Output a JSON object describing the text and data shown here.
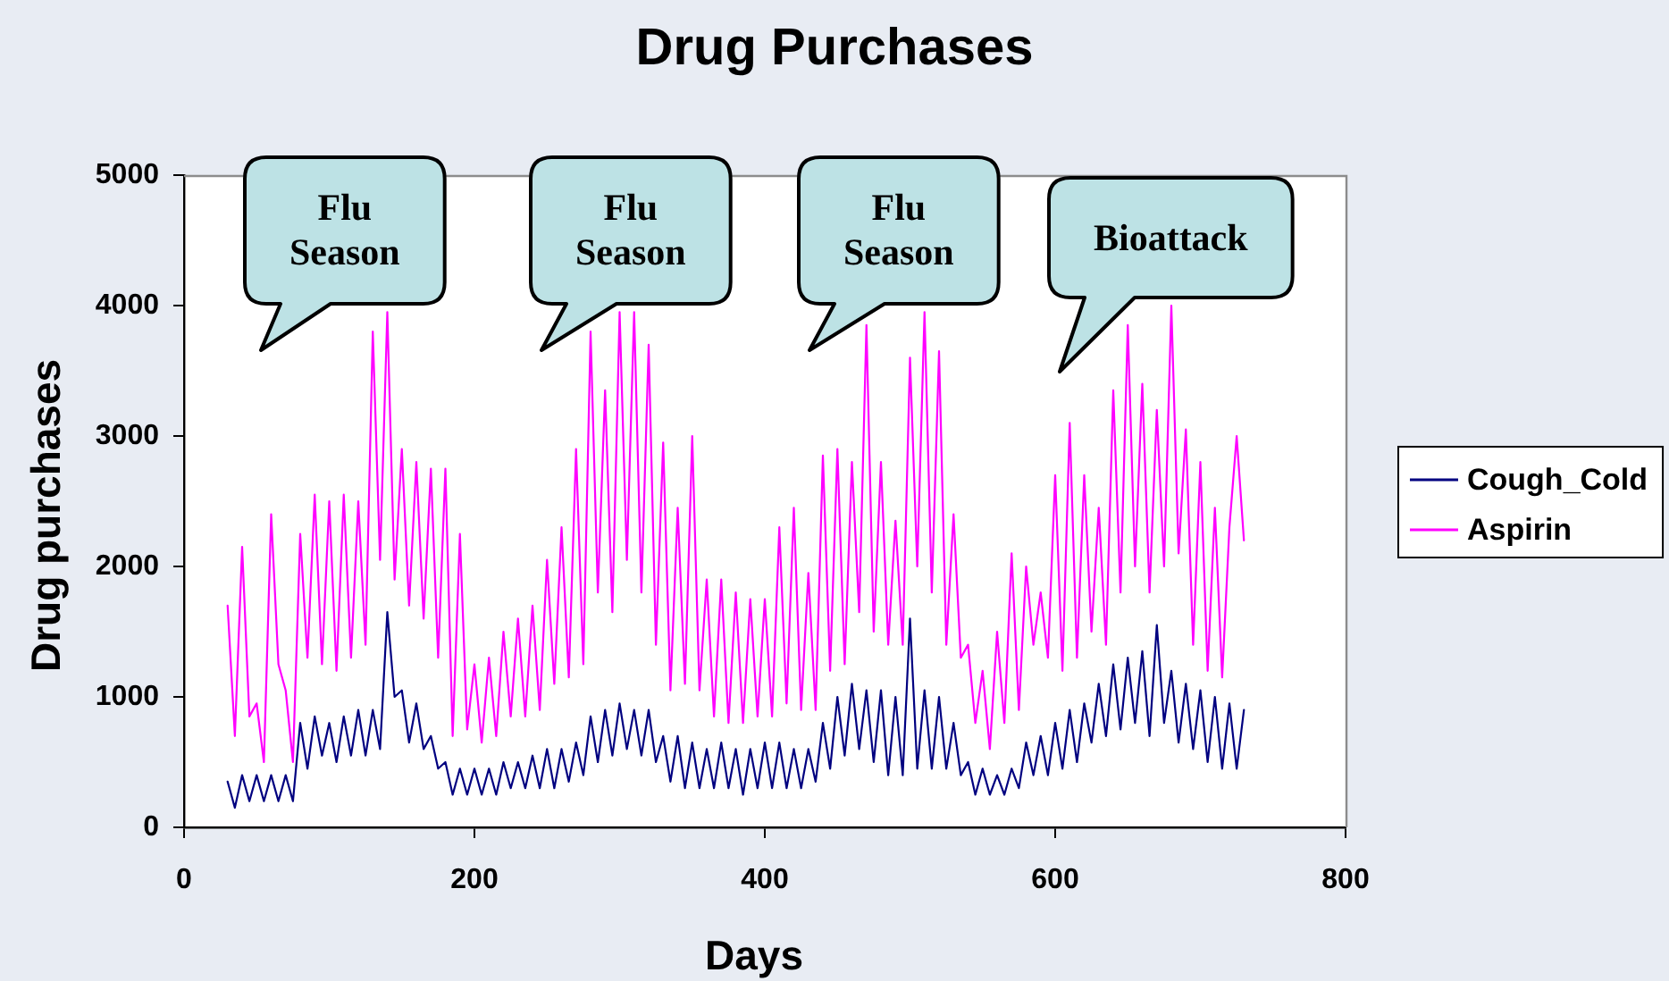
{
  "chart_data": {
    "type": "line",
    "title": "Drug Purchases",
    "xlabel": "Days",
    "ylabel": "Drug purchases",
    "x": [
      30,
      35,
      40,
      45,
      50,
      55,
      60,
      65,
      70,
      75,
      80,
      85,
      90,
      95,
      100,
      105,
      110,
      115,
      120,
      125,
      130,
      135,
      140,
      145,
      150,
      155,
      160,
      165,
      170,
      175,
      180,
      185,
      190,
      195,
      200,
      205,
      210,
      215,
      220,
      225,
      230,
      235,
      240,
      245,
      250,
      255,
      260,
      265,
      270,
      275,
      280,
      285,
      290,
      295,
      300,
      305,
      310,
      315,
      320,
      325,
      330,
      335,
      340,
      345,
      350,
      355,
      360,
      365,
      370,
      375,
      380,
      385,
      390,
      395,
      400,
      405,
      410,
      415,
      420,
      425,
      430,
      435,
      440,
      445,
      450,
      455,
      460,
      465,
      470,
      475,
      480,
      485,
      490,
      495,
      500,
      505,
      510,
      515,
      520,
      525,
      530,
      535,
      540,
      545,
      550,
      555,
      560,
      565,
      570,
      575,
      580,
      585,
      590,
      595,
      600,
      605,
      610,
      615,
      620,
      625,
      630,
      635,
      640,
      645,
      650,
      655,
      660,
      665,
      670,
      675,
      680,
      685,
      690,
      695,
      700,
      705,
      710,
      715,
      720,
      725,
      730
    ],
    "series": [
      {
        "name": "Cough_Cold",
        "color": "#000080",
        "values": [
          350,
          150,
          400,
          200,
          400,
          200,
          400,
          200,
          400,
          200,
          800,
          450,
          850,
          550,
          800,
          500,
          850,
          550,
          900,
          550,
          900,
          600,
          1650,
          1000,
          1050,
          650,
          950,
          600,
          700,
          450,
          500,
          250,
          450,
          250,
          450,
          250,
          450,
          250,
          500,
          300,
          500,
          300,
          550,
          300,
          600,
          300,
          600,
          350,
          650,
          400,
          850,
          500,
          900,
          550,
          950,
          600,
          900,
          550,
          900,
          500,
          700,
          350,
          700,
          300,
          650,
          300,
          600,
          300,
          650,
          300,
          600,
          250,
          600,
          300,
          650,
          300,
          650,
          300,
          600,
          300,
          600,
          350,
          800,
          450,
          1000,
          550,
          1100,
          600,
          1050,
          500,
          1050,
          400,
          1000,
          400,
          1600,
          450,
          1050,
          450,
          1000,
          450,
          800,
          400,
          500,
          250,
          450,
          250,
          400,
          250,
          450,
          300,
          650,
          400,
          700,
          400,
          800,
          450,
          900,
          500,
          950,
          650,
          1100,
          700,
          1250,
          750,
          1300,
          800,
          1350,
          700,
          1550,
          800,
          1200,
          650,
          1100,
          600,
          1050,
          500,
          1000,
          450,
          950,
          450,
          900
        ]
      },
      {
        "name": "Aspirin",
        "color": "#ff00ff",
        "values": [
          1700,
          700,
          2150,
          850,
          950,
          500,
          2400,
          1250,
          1050,
          500,
          2250,
          1300,
          2550,
          1250,
          2500,
          1200,
          2550,
          1300,
          2500,
          1400,
          3800,
          2050,
          3950,
          1900,
          2900,
          1700,
          2800,
          1600,
          2750,
          1300,
          2750,
          700,
          2250,
          750,
          1250,
          650,
          1300,
          700,
          1500,
          850,
          1600,
          850,
          1700,
          900,
          2050,
          1100,
          2300,
          1150,
          2900,
          1250,
          3800,
          1800,
          3350,
          1650,
          3950,
          2050,
          3950,
          1800,
          3700,
          1400,
          2950,
          1050,
          2450,
          1100,
          3000,
          1050,
          1900,
          850,
          1900,
          800,
          1800,
          800,
          1750,
          850,
          1750,
          850,
          2300,
          950,
          2450,
          900,
          1950,
          900,
          2850,
          1200,
          2900,
          1250,
          2800,
          1650,
          3850,
          1500,
          2800,
          1400,
          2350,
          1400,
          3600,
          2000,
          3950,
          1800,
          3650,
          1400,
          2400,
          1300,
          1400,
          800,
          1200,
          600,
          1500,
          800,
          2100,
          900,
          2000,
          1400,
          1800,
          1300,
          2700,
          1200,
          3100,
          1300,
          2700,
          1500,
          2450,
          1400,
          3350,
          1800,
          3850,
          2000,
          3400,
          1800,
          3200,
          2000,
          4000,
          2100,
          3050,
          1400,
          2800,
          1200,
          2450,
          1150,
          2300,
          3000,
          2200
        ]
      }
    ],
    "xlim": [
      0,
      800
    ],
    "xticks": [
      0,
      200,
      400,
      600,
      800
    ],
    "ylim": [
      0,
      5000
    ],
    "yticks": [
      0,
      1000,
      2000,
      3000,
      4000,
      5000
    ],
    "grid": false,
    "legend": "right",
    "marker": "none",
    "line_style": "solid",
    "annotations": [
      "Flu Season",
      "Flu Season",
      "Flu Season",
      "Bioattack"
    ]
  }
}
